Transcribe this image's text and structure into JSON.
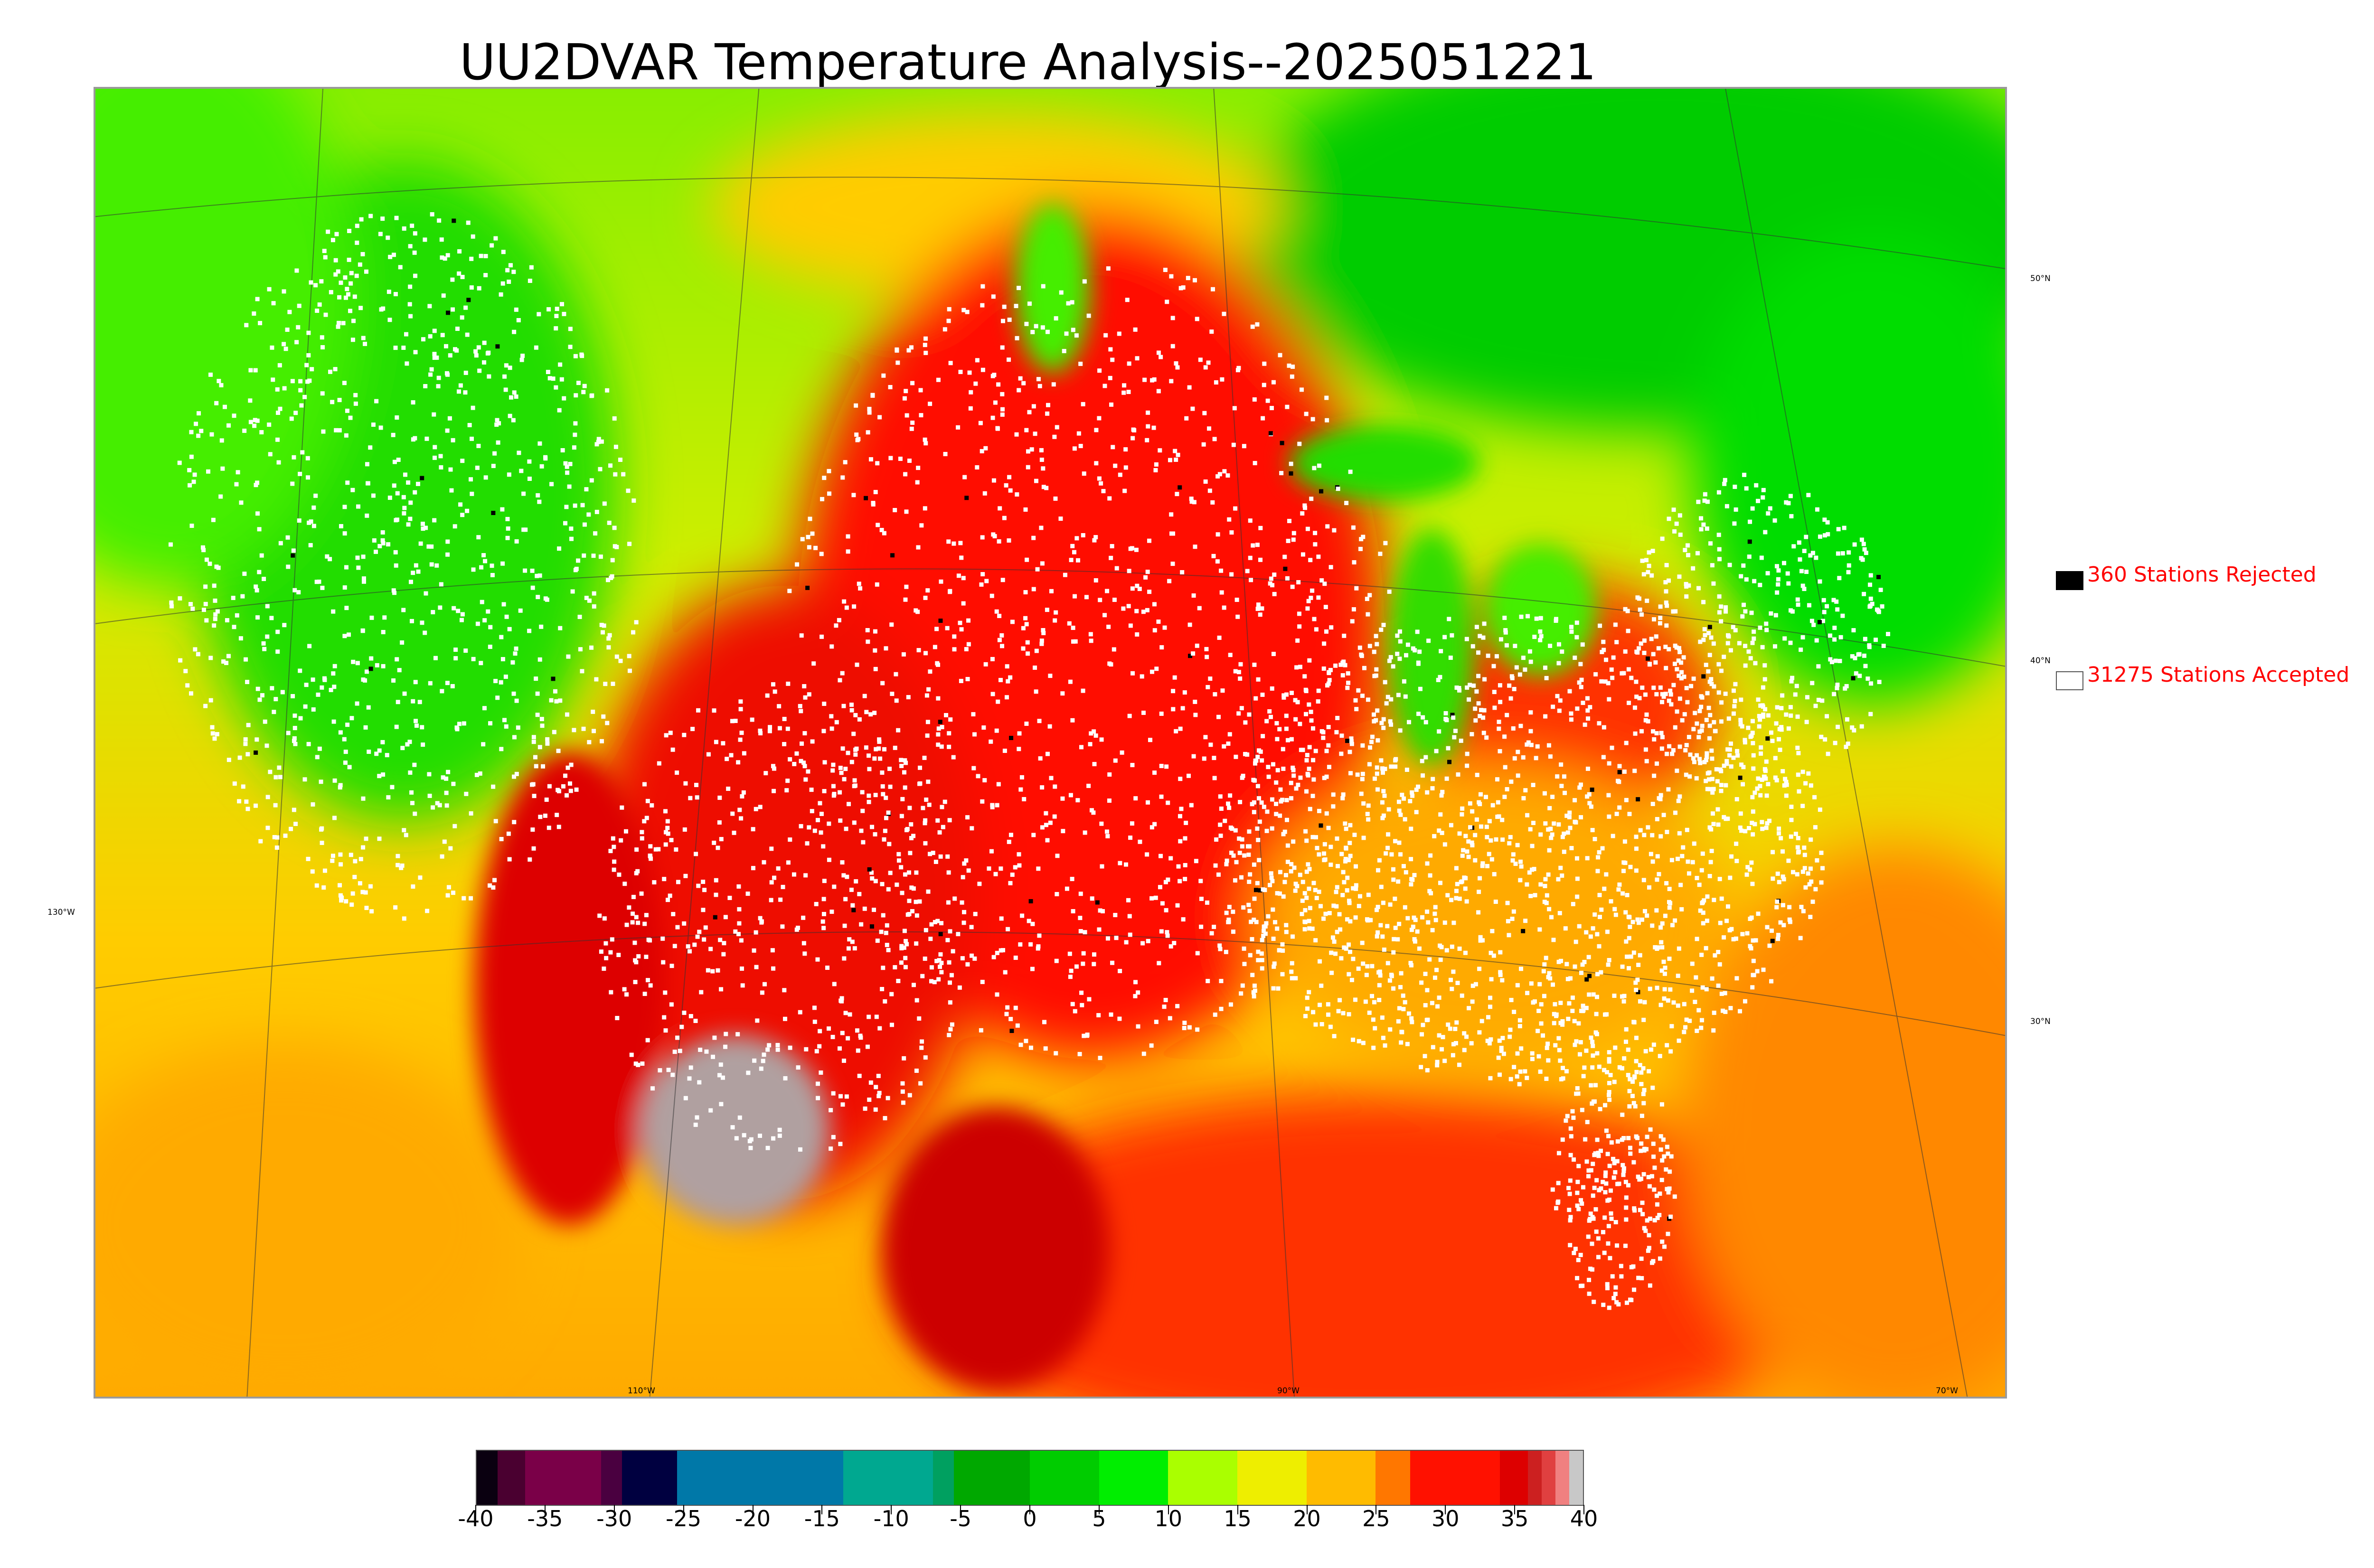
{
  "title": "UU2DVAR Temperature Analysis--2025051221",
  "map": {
    "lat_labels": [
      "50°N",
      "40°N",
      "30°N"
    ],
    "lon_labels": [
      "130°W",
      "110°W",
      "90°W",
      "70°W"
    ],
    "colors": {
      "cold_ocean": "#00dd00",
      "cool": "#aaee00",
      "mild": "#ffdd00",
      "warm": "#ffaa00",
      "hot": "#ff2200",
      "very_hot": "#dd0000",
      "extreme": "#b0b0b0",
      "station_accepted": "#ffffff",
      "station_rejected": "#000000"
    }
  },
  "legend": {
    "rejected": {
      "label": "360 Stations Rejected",
      "color": "#000000"
    },
    "accepted": {
      "label": "31275 Stations Accepted",
      "color": "#ffffff"
    }
  },
  "colorbar": {
    "min": -40,
    "max": 40,
    "tick_labels": [
      "-40",
      "-35",
      "-30",
      "-25",
      "-20",
      "-15",
      "-10",
      "-5",
      "0",
      "5",
      "10",
      "15",
      "20",
      "25",
      "30",
      "35",
      "40"
    ],
    "segments": [
      {
        "from": -40,
        "to": -38.5,
        "color": "#0a0010"
      },
      {
        "from": -38.5,
        "to": -36.5,
        "color": "#4a0030"
      },
      {
        "from": -36.5,
        "to": -31,
        "color": "#7a0048"
      },
      {
        "from": -31,
        "to": -29.5,
        "color": "#4a0040"
      },
      {
        "from": -29.5,
        "to": -25.5,
        "color": "#000040"
      },
      {
        "from": -25.5,
        "to": -13.5,
        "color": "#0078a8"
      },
      {
        "from": -13.5,
        "to": -7,
        "color": "#00a890"
      },
      {
        "from": -7,
        "to": -5.5,
        "color": "#00a060"
      },
      {
        "from": -5.5,
        "to": 0,
        "color": "#00a800"
      },
      {
        "from": 0,
        "to": 5,
        "color": "#00cc00"
      },
      {
        "from": 5,
        "to": 10,
        "color": "#00ee00"
      },
      {
        "from": 10,
        "to": 15,
        "color": "#aaff00"
      },
      {
        "from": 15,
        "to": 20,
        "color": "#eeee00"
      },
      {
        "from": 20,
        "to": 25,
        "color": "#ffbb00"
      },
      {
        "from": 25,
        "to": 27.5,
        "color": "#ff7700"
      },
      {
        "from": 27.5,
        "to": 34,
        "color": "#ff1100"
      },
      {
        "from": 34,
        "to": 36,
        "color": "#dd0000"
      },
      {
        "from": 36,
        "to": 37,
        "color": "#cc2020"
      },
      {
        "from": 37,
        "to": 38,
        "color": "#e04040"
      },
      {
        "from": 38,
        "to": 39,
        "color": "#f08080"
      },
      {
        "from": 39,
        "to": 40,
        "color": "#c8c8c8"
      }
    ]
  }
}
